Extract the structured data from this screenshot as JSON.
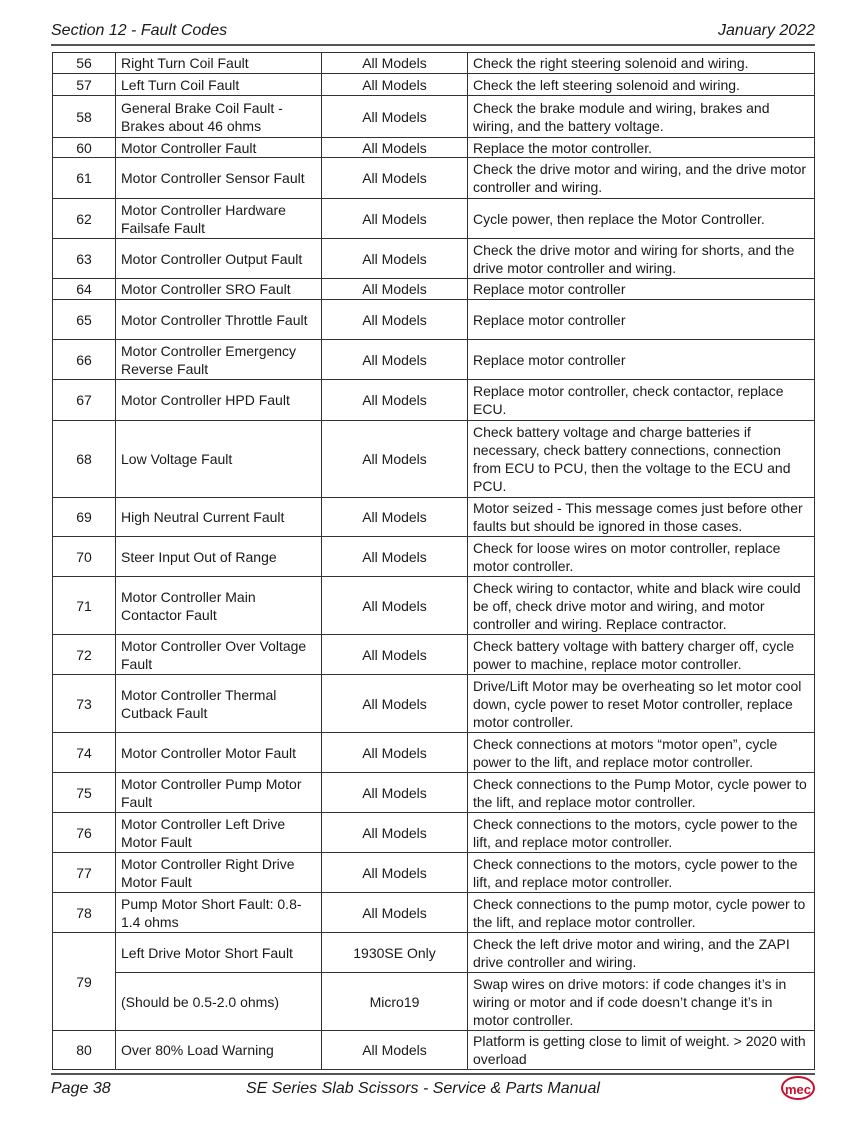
{
  "header": {
    "section": "Section 12 - Fault Codes",
    "date": "January 2022"
  },
  "rows": [
    {
      "code": "56",
      "entries": [
        {
          "fault": "Right Turn Coil Fault",
          "model": "All Models",
          "action": "Check the right steering solenoid and wiring."
        }
      ]
    },
    {
      "code": "57",
      "entries": [
        {
          "fault": "Left Turn Coil Fault",
          "model": "All Models",
          "action": "Check the left steering solenoid and wiring."
        }
      ]
    },
    {
      "code": "58",
      "entries": [
        {
          "fault": "General Brake Coil Fault - Brakes about 46 ohms",
          "model": "All Models",
          "action": "Check the brake module and wiring, brakes and wiring, and the battery voltage."
        }
      ]
    },
    {
      "code": "60",
      "entries": [
        {
          "fault": "Motor Controller Fault",
          "model": "All Models",
          "action": "Replace the motor controller."
        }
      ]
    },
    {
      "code": "61",
      "entries": [
        {
          "fault": "Motor Controller Sensor Fault",
          "model": "All Models",
          "action": "Check the drive motor and wiring, and the drive motor controller and wiring."
        }
      ]
    },
    {
      "code": "62",
      "entries": [
        {
          "fault": "Motor Controller Hardware Failsafe Fault",
          "model": "All Models",
          "action": "Cycle power, then replace the Motor Controller."
        }
      ]
    },
    {
      "code": "63",
      "entries": [
        {
          "fault": "Motor Controller Output Fault",
          "model": "All Models",
          "action": "Check the drive motor and wiring for shorts, and the drive motor controller and wiring."
        }
      ]
    },
    {
      "code": "64",
      "entries": [
        {
          "fault": "Motor Controller SRO Fault",
          "model": "All Models",
          "action": "Replace motor controller"
        }
      ]
    },
    {
      "code": "65",
      "entries": [
        {
          "fault": "Motor Controller Throttle Fault",
          "model": "All Models",
          "action": "Replace motor controller"
        }
      ]
    },
    {
      "code": "66",
      "entries": [
        {
          "fault": "Motor Controller Emergency Reverse Fault",
          "model": "All Models",
          "action": "Replace motor controller"
        }
      ]
    },
    {
      "code": "67",
      "entries": [
        {
          "fault": "Motor Controller HPD Fault",
          "model": "All Models",
          "action": "Replace motor controller, check contactor, replace ECU."
        }
      ]
    },
    {
      "code": "68",
      "entries": [
        {
          "fault": "Low Voltage Fault",
          "model": "All Models",
          "action": "Check battery voltage and charge batteries if necessary, check battery connections, connection from ECU to PCU, then the voltage to the ECU and PCU."
        }
      ]
    },
    {
      "code": "69",
      "entries": [
        {
          "fault": "High Neutral Current Fault",
          "model": "All Models",
          "action": "Motor seized - This message comes just before other faults but should be ignored in those cases."
        }
      ]
    },
    {
      "code": "70",
      "entries": [
        {
          "fault": "Steer Input Out of Range",
          "model": "All Models",
          "action": "Check for loose wires on motor controller, replace motor controller."
        }
      ]
    },
    {
      "code": "71",
      "entries": [
        {
          "fault": "Motor Controller Main Contactor Fault",
          "model": "All Models",
          "action": "Check wiring to contactor, white and black wire could be off, check drive motor and wiring, and motor controller and wiring. Replace contractor."
        }
      ]
    },
    {
      "code": "72",
      "entries": [
        {
          "fault": "Motor Controller Over Voltage Fault",
          "model": "All Models",
          "action": "Check battery voltage with battery charger off, cycle power to machine, replace motor controller."
        }
      ]
    },
    {
      "code": "73",
      "entries": [
        {
          "fault": "Motor Controller Thermal Cutback Fault",
          "model": "All Models",
          "action": "Drive/Lift Motor may be overheating so let motor cool down, cycle power to reset Motor controller, replace motor controller."
        }
      ]
    },
    {
      "code": "74",
      "entries": [
        {
          "fault": "Motor Controller Motor Fault",
          "model": "All Models",
          "action": "Check connections at motors “motor open”, cycle power to the lift, and replace motor controller."
        }
      ]
    },
    {
      "code": "75",
      "entries": [
        {
          "fault": "Motor Controller Pump Motor Fault",
          "model": "All Models",
          "action": "Check connections to the Pump Motor, cycle power to the lift, and replace motor controller."
        }
      ]
    },
    {
      "code": "76",
      "entries": [
        {
          "fault": "Motor Controller Left Drive Motor Fault",
          "model": "All Models",
          "action": "Check connections to the motors, cycle power to the lift, and replace motor controller."
        }
      ]
    },
    {
      "code": "77",
      "entries": [
        {
          "fault": "Motor Controller Right Drive Motor Fault",
          "model": "All Models",
          "action": "Check connections to the motors, cycle power to the lift, and replace motor controller."
        }
      ]
    },
    {
      "code": "78",
      "entries": [
        {
          "fault": "Pump Motor Short Fault: 0.8-1.4 ohms",
          "model": "All Models",
          "action": "Check connections to the pump motor, cycle power to the lift, and replace motor controller."
        }
      ]
    },
    {
      "code": "79",
      "entries": [
        {
          "fault": "Left Drive Motor Short Fault",
          "model": "1930SE Only",
          "action": "Check the left drive motor and wiring, and the ZAPI drive controller and wiring."
        },
        {
          "fault": "(Should be 0.5-2.0 ohms)",
          "model": "Micro19",
          "action": "Swap wires on drive motors: if code changes it’s in wiring or motor and if code doesn’t change it’s in motor controller."
        }
      ]
    },
    {
      "code": "80",
      "entries": [
        {
          "fault": "Over 80% Load Warning",
          "model": "All Models",
          "action": "Platform is getting close to limit of weight. > 2020 with overload"
        }
      ]
    }
  ],
  "footer": {
    "page": "Page 38",
    "title": "SE Series Slab Scissors - Service & Parts Manual",
    "logo_text": "mec",
    "brand_color": "#c8102e"
  }
}
